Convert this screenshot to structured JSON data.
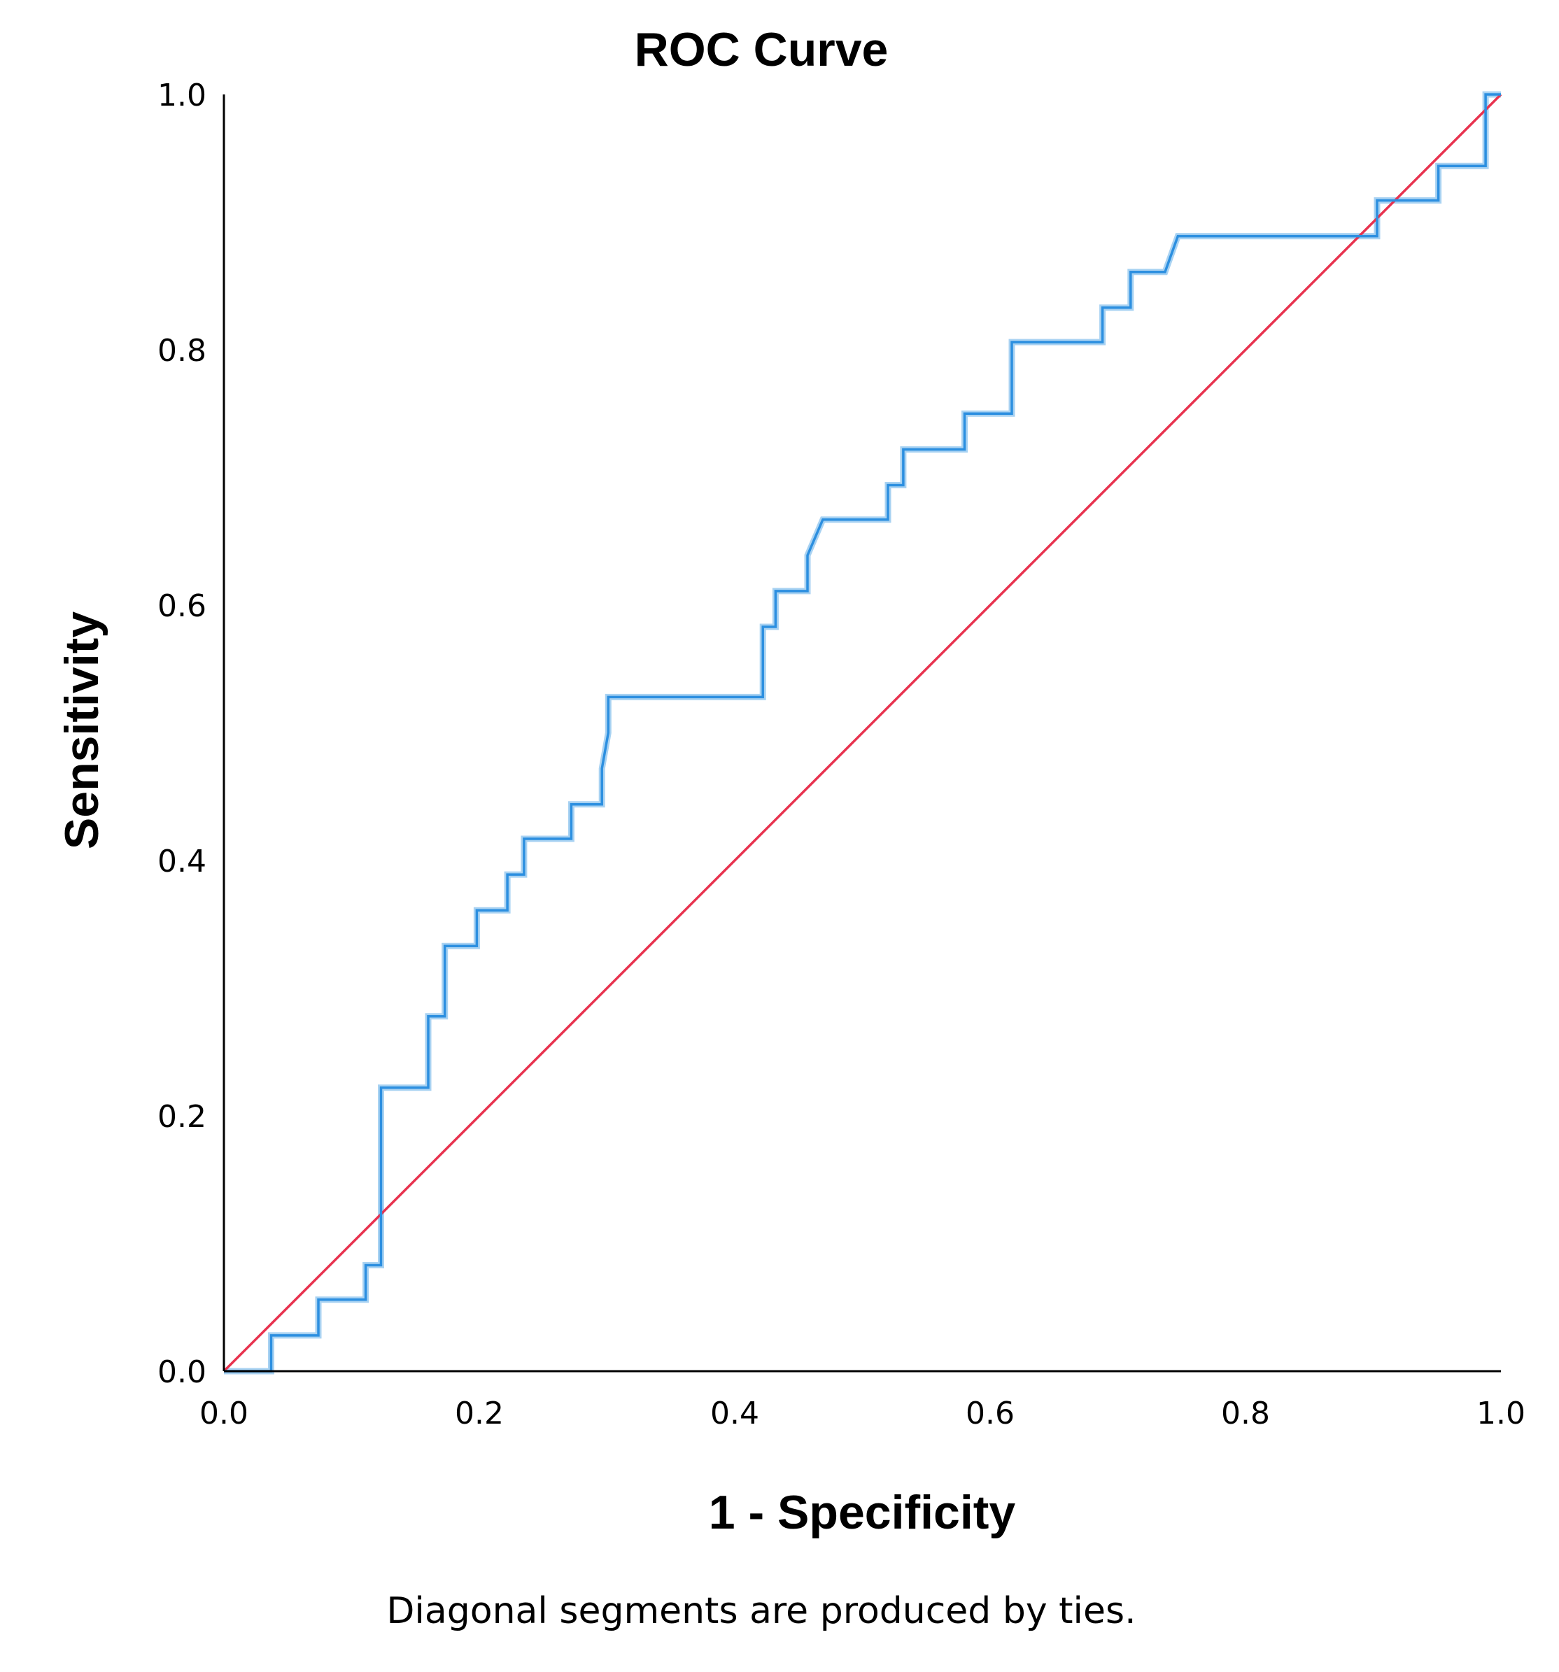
{
  "chart_data": {
    "type": "line",
    "title": "ROC Curve",
    "xlabel": "1 - Specificity",
    "ylabel": "Sensitivity",
    "xlim": [
      0,
      1
    ],
    "ylim": [
      0,
      1
    ],
    "xticks": [
      "0.0",
      "0.2",
      "0.4",
      "0.6",
      "0.8",
      "1.0"
    ],
    "yticks": [
      "0.0",
      "0.2",
      "0.4",
      "0.6",
      "0.8",
      "1.0"
    ],
    "footnote": "Diagonal segments are produced by ties.",
    "colors": {
      "curve": "#2c8fe0",
      "curve_highlight": "#a8d2f2",
      "reference": "#e8334f",
      "axis": "#000000"
    },
    "series": [
      {
        "name": "ROC curve",
        "x": [
          0,
          0.037,
          0.037,
          0.074,
          0.074,
          0.111,
          0.111,
          0.123,
          0.123,
          0.16,
          0.16,
          0.173,
          0.173,
          0.198,
          0.198,
          0.222,
          0.222,
          0.235,
          0.235,
          0.272,
          0.272,
          0.296,
          0.296,
          0.301,
          0.301,
          0.422,
          0.422,
          0.432,
          0.432,
          0.457,
          0.457,
          0.469,
          0.52,
          0.52,
          0.532,
          0.532,
          0.58,
          0.58,
          0.617,
          0.617,
          0.688,
          0.688,
          0.71,
          0.71,
          0.737,
          0.747,
          0.903,
          0.903,
          0.951,
          0.951,
          0.988,
          0.988,
          1.0
        ],
        "y": [
          0,
          0,
          0.028,
          0.028,
          0.056,
          0.056,
          0.083,
          0.083,
          0.222,
          0.222,
          0.278,
          0.278,
          0.333,
          0.333,
          0.361,
          0.361,
          0.389,
          0.389,
          0.417,
          0.417,
          0.444,
          0.444,
          0.472,
          0.5,
          0.528,
          0.528,
          0.583,
          0.583,
          0.611,
          0.611,
          0.639,
          0.667,
          0.667,
          0.694,
          0.694,
          0.722,
          0.722,
          0.75,
          0.75,
          0.806,
          0.806,
          0.833,
          0.833,
          0.861,
          0.861,
          0.889,
          0.889,
          0.917,
          0.917,
          0.944,
          0.944,
          1.0,
          1.0
        ]
      },
      {
        "name": "Reference line",
        "x": [
          0,
          1
        ],
        "y": [
          0,
          1
        ]
      }
    ]
  }
}
